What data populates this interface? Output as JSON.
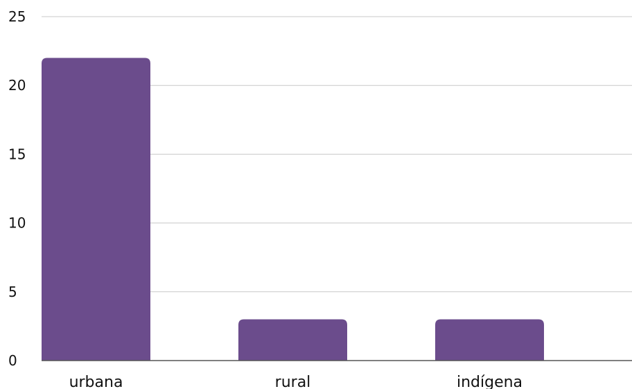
{
  "chart_data": {
    "type": "bar",
    "title": "",
    "xlabel": "",
    "ylabel": "",
    "categories": [
      "urbana",
      "rural",
      "indígena"
    ],
    "values": [
      22,
      3,
      3
    ],
    "ylim": [
      0,
      25
    ],
    "yticks": [
      "0",
      "5",
      "10",
      "15",
      "20",
      "25"
    ],
    "grid": true,
    "legend": "none",
    "colors": {
      "bar": "#6b4c8c",
      "grid": "#c8c8c8",
      "axis": "#555555",
      "text": "#111111"
    }
  }
}
